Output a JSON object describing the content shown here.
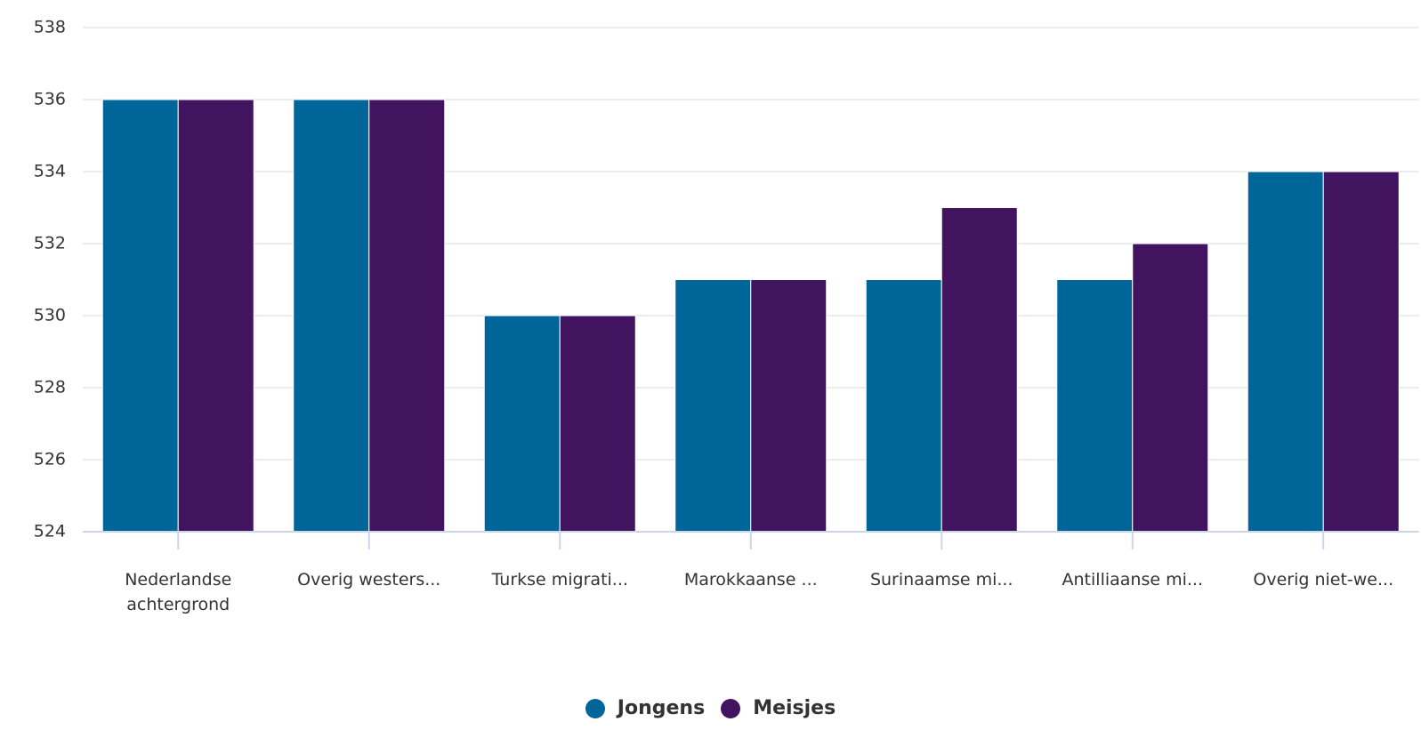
{
  "chart_data": {
    "type": "bar",
    "categories": [
      "Nederlandse achtergrond",
      "Overig westers...",
      "Turkse migrati...",
      "Marokkaanse ...",
      "Surinaamse mi...",
      "Antilliaanse mi...",
      "Overig niet-we..."
    ],
    "series": [
      {
        "name": "Jongens",
        "color": "#00669a",
        "values": [
          536,
          536,
          530,
          531,
          531,
          531,
          534
        ]
      },
      {
        "name": "Meisjes",
        "color": "#42145f",
        "values": [
          536,
          536,
          530,
          531,
          533,
          532,
          534
        ]
      }
    ],
    "ylim": [
      524,
      538
    ],
    "yticks": [
      524,
      526,
      528,
      530,
      532,
      534,
      536,
      538
    ],
    "grid": true,
    "legend": "bottom"
  }
}
